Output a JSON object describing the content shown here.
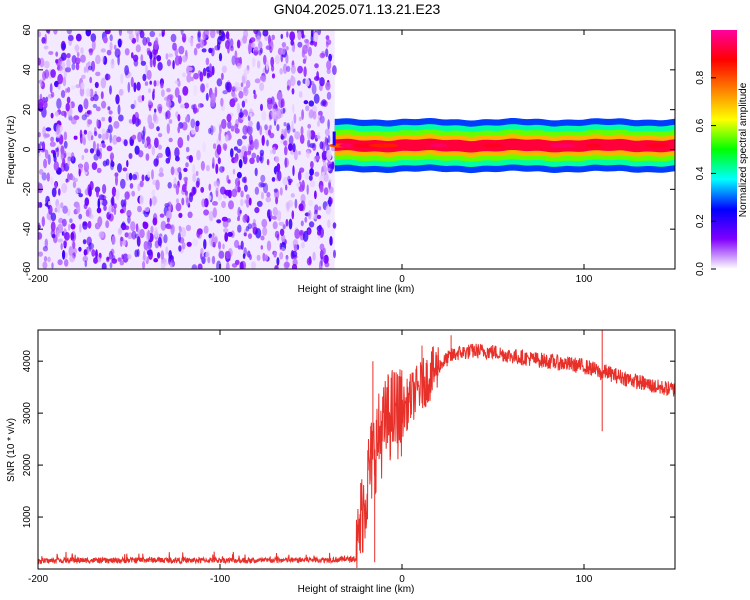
{
  "figure": {
    "title": "GN04.2025.071.13.21.E23"
  },
  "chart_data": [
    {
      "type": "heatmap",
      "title": "GN04.2025.071.13.21.E23",
      "xlabel": "Height of straight line (km)",
      "ylabel": "Frequency (Hz)",
      "xlim": [
        -200,
        150
      ],
      "ylim": [
        -60,
        60
      ],
      "x_ticks": [
        -200,
        -100,
        0,
        100
      ],
      "y_ticks": [
        -60,
        -40,
        -20,
        0,
        20,
        40,
        60
      ],
      "colorbar": {
        "label": "Normalized spectral amplitude",
        "range": [
          0.0,
          1.0
        ],
        "ticks": [
          0.0,
          0.2,
          0.4,
          0.6,
          0.8
        ],
        "colormap": [
          "#ffffff",
          "#8000ff",
          "#0000ff",
          "#00ffff",
          "#00ff00",
          "#ffff00",
          "#ff8000",
          "#ff0000",
          "#ff00a0"
        ]
      },
      "regions": [
        {
          "x_range": [
            -200,
            -37
          ],
          "freq_range": [
            -60,
            60
          ],
          "amplitude": [
            0.0,
            0.2
          ],
          "pattern": "noise"
        },
        {
          "x_range": [
            -37,
            150
          ],
          "freq_center": 2,
          "freq_width": 6,
          "amplitude": [
            0.4,
            1.0
          ],
          "pattern": "narrow band near 0-3 Hz"
        }
      ],
      "grid": false
    },
    {
      "type": "line",
      "xlabel": "Height of straight line (km)",
      "ylabel": "SNR (10 * v/v)",
      "xlim": [
        -200,
        150
      ],
      "ylim": [
        0,
        4600
      ],
      "x_ticks": [
        -200,
        -100,
        0,
        100
      ],
      "y_ticks": [
        1000,
        2000,
        3000,
        4000
      ],
      "series": [
        {
          "color": "#e8302a",
          "x": [
            -200,
            -180,
            -160,
            -140,
            -120,
            -100,
            -80,
            -60,
            -40,
            -30,
            -25,
            -22,
            -20,
            -18,
            -15,
            -12,
            -10,
            -8,
            -5,
            0,
            5,
            10,
            15,
            20,
            25,
            30,
            40,
            50,
            60,
            70,
            80,
            90,
            100,
            105,
            108,
            110,
            112,
            115,
            120,
            130,
            140,
            150
          ],
          "y": [
            150,
            170,
            160,
            175,
            165,
            170,
            160,
            170,
            180,
            185,
            200,
            1100,
            1400,
            1900,
            2300,
            2600,
            2700,
            2900,
            3000,
            3000,
            3300,
            3500,
            3700,
            3900,
            4050,
            4150,
            4200,
            4180,
            4100,
            4050,
            4000,
            3950,
            3900,
            3850,
            3800,
            3750,
            3800,
            3750,
            3700,
            3600,
            3500,
            3450
          ],
          "noise_amplitude": 150,
          "spikes": [
            {
              "x": -16,
              "y": 4000
            },
            {
              "x": -15,
              "y": 130
            },
            {
              "x": 11,
              "y": 4300
            },
            {
              "x": 27,
              "y": 4500
            },
            {
              "x": 110,
              "y": 4600
            },
            {
              "x": 110,
              "y": 2650
            }
          ]
        }
      ],
      "grid": false
    }
  ]
}
